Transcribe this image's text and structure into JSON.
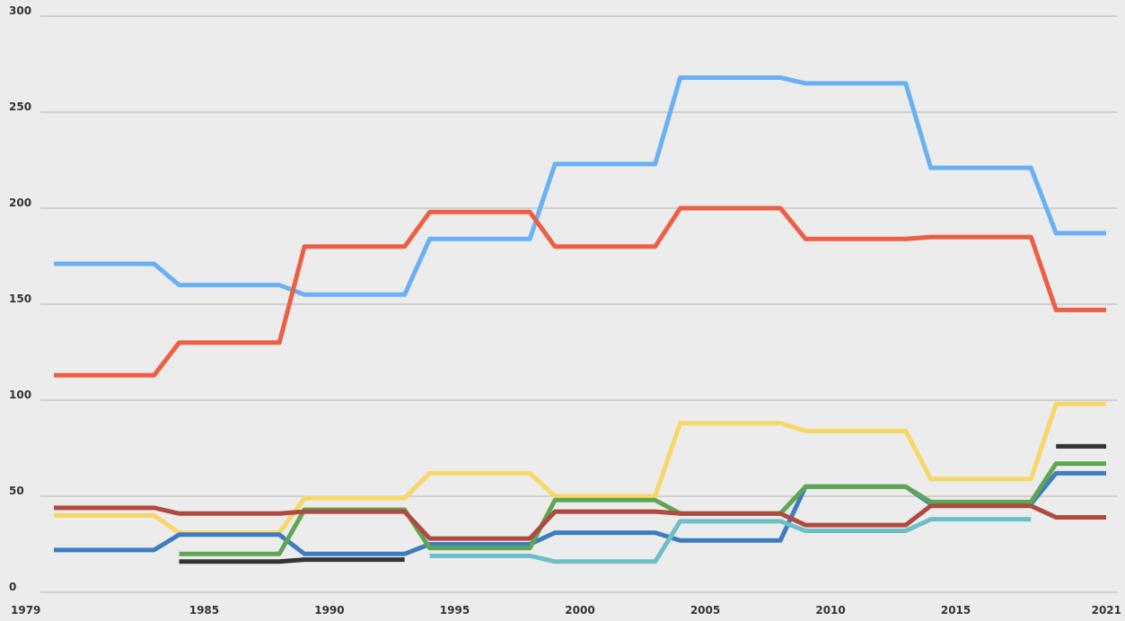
{
  "chart_data": {
    "type": "line",
    "x": [
      1979,
      1983,
      1984,
      1988,
      1989,
      1993,
      1994,
      1998,
      1999,
      2003,
      2004,
      2008,
      2009,
      2013,
      2014,
      2018,
      2019,
      2021
    ],
    "series": [
      {
        "color": "#6ab0f5",
        "values": [
          171,
          171,
          160,
          160,
          155,
          155,
          184,
          184,
          223,
          223,
          268,
          268,
          265,
          265,
          221,
          221,
          187,
          187
        ]
      },
      {
        "color": "#ec5f45",
        "values": [
          113,
          113,
          130,
          130,
          180,
          180,
          198,
          198,
          180,
          180,
          200,
          200,
          184,
          184,
          185,
          185,
          147,
          147
        ]
      },
      {
        "color": "#f7d768",
        "values": [
          40,
          40,
          31,
          31,
          49,
          49,
          62,
          62,
          50,
          50,
          88,
          88,
          84,
          84,
          59,
          59,
          98,
          98
        ]
      },
      {
        "color": "#3e7cbf",
        "values": [
          22,
          22,
          30,
          30,
          20,
          20,
          25,
          25,
          31,
          31,
          27,
          27,
          55,
          55,
          46,
          46,
          62,
          62
        ]
      },
      {
        "color": "#5ea653",
        "values": [
          null,
          null,
          20,
          20,
          43,
          43,
          23,
          23,
          48,
          48,
          41,
          41,
          55,
          55,
          47,
          47,
          67,
          67
        ]
      },
      {
        "color": "#6cbfc6",
        "values": [
          null,
          null,
          null,
          null,
          null,
          null,
          19,
          19,
          16,
          16,
          37,
          37,
          32,
          32,
          38,
          38,
          null,
          null
        ]
      },
      {
        "color": "#b04a3f",
        "values": [
          44,
          44,
          41,
          41,
          42,
          42,
          28,
          28,
          42,
          42,
          41,
          41,
          35,
          35,
          45,
          45,
          39,
          39
        ]
      },
      {
        "color": "#333333",
        "values": [
          null,
          null,
          16,
          16,
          17,
          17,
          null,
          null,
          null,
          null,
          null,
          null,
          null,
          null,
          null,
          null,
          76,
          76
        ]
      }
    ],
    "xlim": [
      1979,
      2021
    ],
    "xticks": [
      1979,
      1985,
      1990,
      1995,
      2000,
      2005,
      2010,
      2015,
      2021
    ],
    "ylim": [
      0,
      300
    ],
    "yticks": [
      0,
      50,
      100,
      150,
      200,
      250,
      300
    ],
    "grid": true
  }
}
